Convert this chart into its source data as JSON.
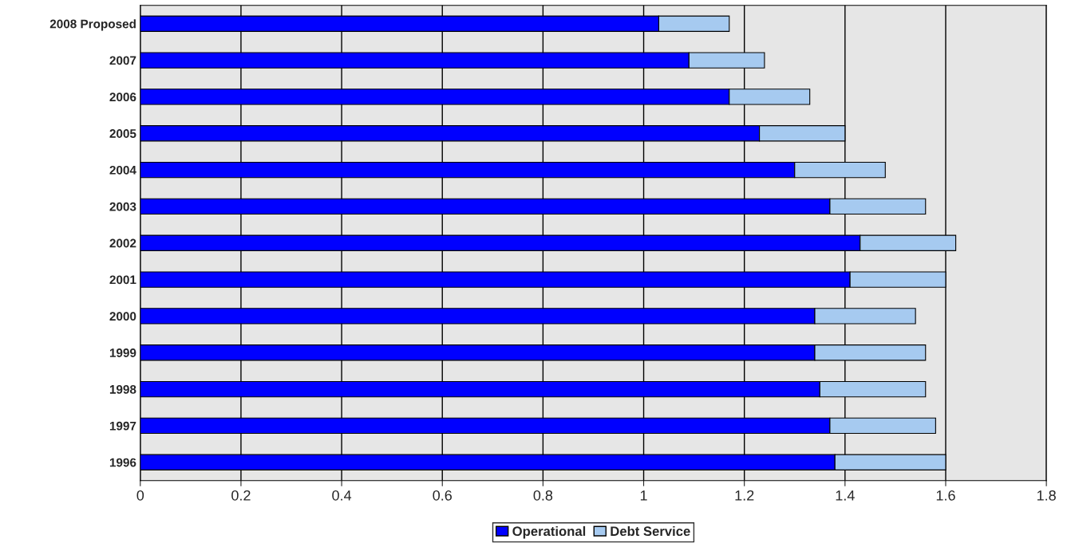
{
  "chart_data": {
    "type": "bar",
    "orientation": "horizontal",
    "stacked": true,
    "categories": [
      "2008 Proposed",
      "2007",
      "2006",
      "2005",
      "2004",
      "2003",
      "2002",
      "2001",
      "2000",
      "1999",
      "1998",
      "1997",
      "1996"
    ],
    "series": [
      {
        "name": "Operational",
        "color": "#0000ff",
        "values": [
          1.03,
          1.09,
          1.17,
          1.23,
          1.3,
          1.37,
          1.43,
          1.41,
          1.34,
          1.34,
          1.35,
          1.37,
          1.38
        ]
      },
      {
        "name": "Debt Service",
        "color": "#a6caf0",
        "values": [
          0.14,
          0.15,
          0.16,
          0.17,
          0.18,
          0.19,
          0.19,
          0.19,
          0.2,
          0.22,
          0.21,
          0.21,
          0.22
        ]
      }
    ],
    "xlim": [
      0,
      1.8
    ],
    "xticks": [
      0,
      {
        "value": 0.2,
        "label": "0.2"
      },
      {
        "value": 0.4,
        "label": "0.4"
      },
      {
        "value": 0.6,
        "label": "0.6"
      },
      {
        "value": 0.8,
        "label": "0.8"
      },
      1,
      {
        "value": 1.2,
        "label": "1.2"
      },
      {
        "value": 1.4,
        "label": "1.4"
      },
      {
        "value": 1.6,
        "label": "1.6"
      },
      {
        "value": 1.8,
        "label": "1.8"
      }
    ],
    "grid": "x",
    "legend": "bottom"
  }
}
